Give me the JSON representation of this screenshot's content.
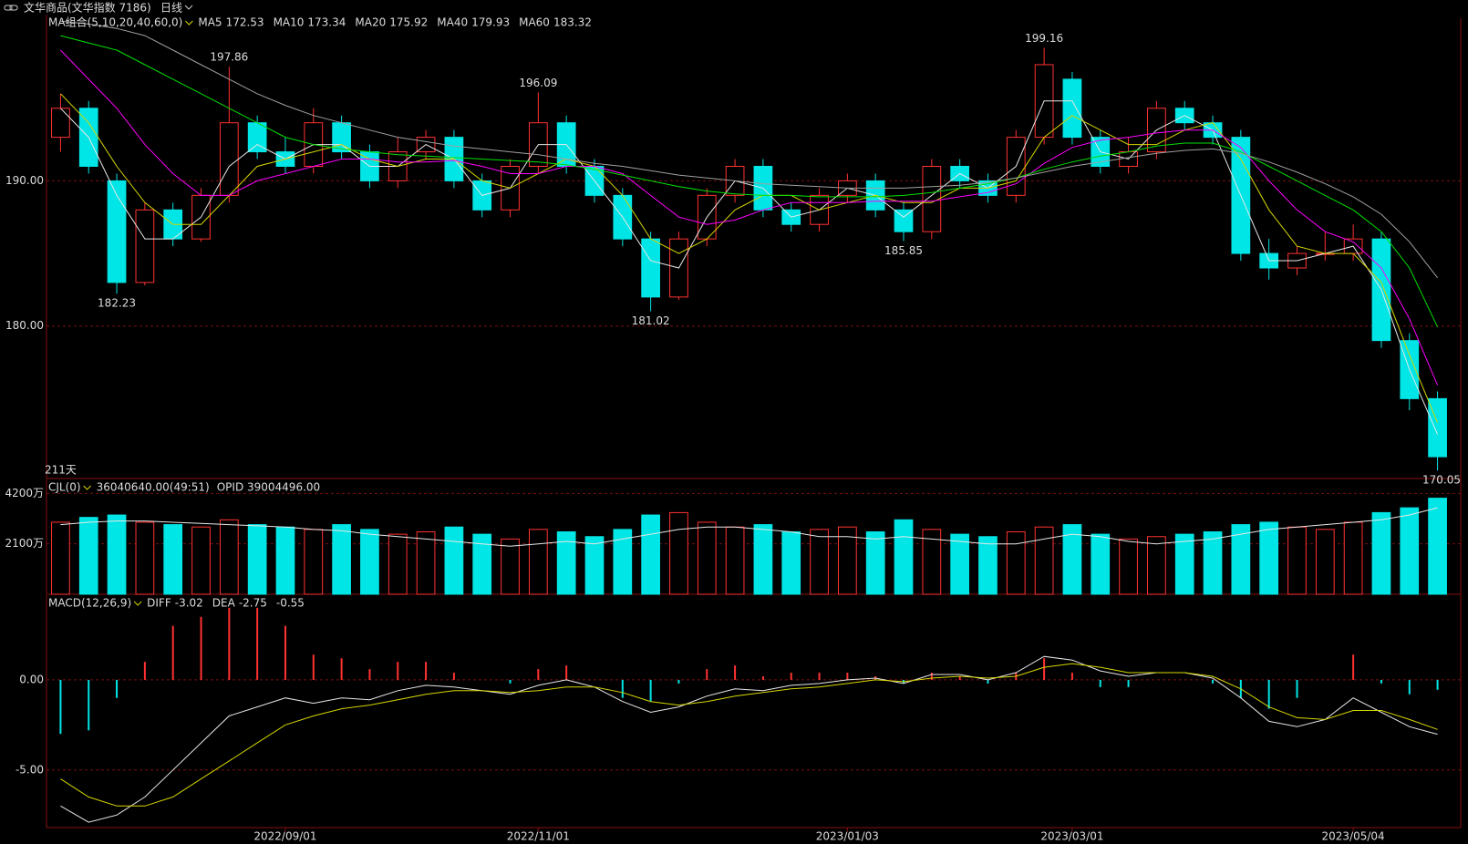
{
  "chart_data": [
    {
      "type": "candlestick",
      "title": "文华商品(文华指数 7186)",
      "period": "日线",
      "ma_label": "MA组合(5,10,20,40,60,0)",
      "count_label": "211天",
      "categories": [
        null,
        null,
        null,
        null,
        null,
        null,
        null,
        null,
        "2022/09/01",
        null,
        null,
        null,
        null,
        null,
        null,
        null,
        null,
        "2022/11/01",
        null,
        null,
        null,
        null,
        null,
        null,
        null,
        null,
        null,
        null,
        "2023/01/03",
        null,
        null,
        null,
        null,
        null,
        null,
        null,
        "2023/03/01",
        null,
        null,
        null,
        null,
        null,
        null,
        null,
        null,
        null,
        "2023/05/04",
        null,
        null,
        null
      ],
      "open": [
        193,
        195,
        190,
        183,
        188,
        186,
        189,
        194,
        192,
        191,
        194,
        192,
        190,
        192,
        193,
        190,
        188,
        191,
        194,
        191,
        189,
        186,
        182,
        186,
        189,
        191,
        188,
        187,
        189,
        190,
        188,
        186.5,
        191,
        190,
        189,
        193,
        197,
        193,
        191,
        192,
        195,
        194,
        193,
        185,
        184,
        185,
        185,
        186,
        179,
        175
      ],
      "high": [
        196,
        195.5,
        190.5,
        188.5,
        188.5,
        189.5,
        197.86,
        194.5,
        193,
        195,
        194.5,
        192.5,
        193,
        193.5,
        193.5,
        190.5,
        191.5,
        196.09,
        194.5,
        191.5,
        189.5,
        186.5,
        186.5,
        189.5,
        191.5,
        191.5,
        188.5,
        189.5,
        190.5,
        190.5,
        188.5,
        191.5,
        191.5,
        190.5,
        193.5,
        199.16,
        197.5,
        193.5,
        193,
        195.5,
        195.5,
        194.5,
        193.5,
        186,
        185.5,
        186.5,
        187,
        186.5,
        179.5,
        175.5
      ],
      "low": [
        192,
        190.5,
        182.23,
        182.8,
        185.5,
        185.8,
        188.5,
        191.5,
        190.5,
        190.5,
        191.5,
        189.5,
        189.5,
        191.5,
        189.5,
        187.5,
        187.5,
        190.5,
        190.5,
        188.5,
        185.5,
        181.02,
        181.8,
        185.5,
        188.5,
        187.5,
        186.5,
        186.5,
        188.5,
        187.5,
        185.85,
        186,
        189.5,
        188.5,
        188.5,
        192.5,
        192.5,
        190.5,
        190.5,
        191.5,
        193.5,
        192.5,
        184.5,
        183.2,
        183.5,
        184.5,
        184.5,
        178.5,
        174.2,
        170.05
      ],
      "close": [
        195,
        191,
        183,
        188,
        186,
        189,
        194,
        192,
        191,
        194,
        192,
        190,
        192,
        193,
        190,
        188,
        191,
        194,
        191,
        189,
        186,
        182,
        186,
        189,
        191,
        188,
        187,
        189,
        190,
        188,
        186.5,
        191,
        190,
        189,
        193,
        198,
        193,
        191,
        192,
        195,
        194,
        193,
        185,
        184,
        185,
        185,
        186,
        179,
        175,
        171
      ],
      "up_color": "#ff3232",
      "down_color": "#00e5e5",
      "ylim": [
        169.5,
        201.2
      ],
      "yticks": [
        {
          "value": 180,
          "label": "180.00"
        },
        {
          "value": 190,
          "label": "190.00"
        }
      ],
      "series": [
        {
          "name": "MA5",
          "color": "#e8e8e8",
          "last": 172.53,
          "values": [
            195,
            193,
            189,
            186,
            186,
            187.5,
            191,
            192.5,
            191.5,
            192.5,
            192.5,
            191,
            191,
            192.5,
            191.5,
            189,
            189.5,
            192.5,
            192.5,
            190,
            187.5,
            184.5,
            184,
            187.5,
            190,
            189.5,
            187.5,
            188,
            189.5,
            189,
            187.5,
            189,
            190.5,
            189.5,
            191,
            195.5,
            195.5,
            192,
            191.5,
            193.5,
            194.5,
            193.5,
            189,
            184.5,
            184.5,
            185,
            185.5,
            182.5,
            177,
            172.53
          ]
        },
        {
          "name": "MA10",
          "color": "#d6d600",
          "last": 173.34,
          "values": [
            196,
            194,
            191,
            188.5,
            187,
            187,
            189,
            191,
            191.5,
            192,
            192.5,
            191.5,
            191,
            191.5,
            191.5,
            190,
            189.5,
            190.5,
            191.5,
            191,
            189,
            186,
            185,
            186,
            188,
            189,
            189,
            188,
            188.5,
            189,
            188.5,
            188.5,
            189.5,
            189.5,
            190,
            193,
            194.5,
            193.5,
            192.5,
            192.5,
            193.5,
            194,
            191.5,
            188,
            185.5,
            185,
            185,
            183,
            178,
            173.34
          ]
        },
        {
          "name": "MA20",
          "color": "#ff00ff",
          "last": 175.92,
          "values": [
            199,
            197,
            195,
            192.5,
            190.5,
            189,
            189,
            190,
            190.5,
            191,
            191.5,
            191.5,
            191.3,
            191.3,
            191.4,
            191,
            190.5,
            190.5,
            191,
            191,
            190.5,
            189,
            187.5,
            187,
            187.3,
            188,
            188.5,
            188.5,
            188.5,
            188.6,
            188.6,
            188.6,
            188.9,
            189.2,
            189.8,
            191.2,
            192.3,
            192.8,
            193,
            193.3,
            193.5,
            193.5,
            192.3,
            190,
            188,
            186.5,
            185.8,
            184,
            180.5,
            175.92
          ]
        },
        {
          "name": "MA40",
          "color": "#00e000",
          "last": 179.93,
          "values": [
            200,
            199.5,
            199,
            198,
            197,
            196,
            195,
            194,
            193,
            192.5,
            192.2,
            192,
            191.8,
            191.7,
            191.6,
            191.5,
            191.4,
            191.3,
            191.1,
            190.8,
            190.4,
            190,
            189.6,
            189.3,
            189.1,
            189,
            189,
            188.9,
            188.9,
            188.9,
            189,
            189.2,
            189.5,
            189.8,
            190.2,
            190.8,
            191.3,
            191.7,
            192,
            192.4,
            192.6,
            192.6,
            192,
            191,
            190,
            189,
            188,
            186.5,
            184,
            179.93
          ]
        },
        {
          "name": "MA60",
          "color": "#a0a0a0",
          "last": 183.32,
          "values": [
            201,
            200.8,
            200.5,
            200,
            199,
            198,
            197,
            196,
            195.2,
            194.5,
            194,
            193.5,
            193,
            192.7,
            192.4,
            192.2,
            192,
            191.8,
            191.5,
            191.2,
            191,
            190.7,
            190.4,
            190.2,
            190,
            189.8,
            189.7,
            189.6,
            189.5,
            189.5,
            189.5,
            189.6,
            189.7,
            189.9,
            190.2,
            190.6,
            191,
            191.3,
            191.6,
            191.9,
            192.1,
            192.2,
            191.9,
            191.3,
            190.6,
            189.8,
            188.9,
            187.7,
            185.8,
            183.32
          ]
        }
      ]
    },
    {
      "type": "volume",
      "title": "CJL(0)",
      "info": "36040640.00(49:51)",
      "oi_label": "OPID 39004496.00",
      "ylim": [
        0,
        4630
      ],
      "yticks": [
        {
          "value": 2100,
          "label": "2100万"
        },
        {
          "value": 4200,
          "label": "4200万"
        }
      ],
      "values": [
        3000,
        3200,
        3300,
        3000,
        2900,
        2800,
        3100,
        2900,
        2800,
        2700,
        2900,
        2700,
        2500,
        2600,
        2800,
        2500,
        2300,
        2700,
        2600,
        2400,
        2700,
        3300,
        3400,
        3000,
        2800,
        2900,
        2600,
        2700,
        2800,
        2600,
        3100,
        2700,
        2500,
        2400,
        2600,
        2800,
        2900,
        2500,
        2300,
        2400,
        2500,
        2600,
        2900,
        3000,
        2800,
        2700,
        3000,
        3400,
        3600,
        4000
      ],
      "ma": {
        "color": "#e8e8e8",
        "values": [
          2900,
          3000,
          3050,
          3050,
          3000,
          2950,
          2900,
          2850,
          2800,
          2700,
          2650,
          2500,
          2400,
          2300,
          2200,
          2100,
          2000,
          2100,
          2200,
          2100,
          2300,
          2500,
          2700,
          2800,
          2800,
          2700,
          2600,
          2400,
          2400,
          2300,
          2400,
          2300,
          2200,
          2100,
          2100,
          2300,
          2500,
          2400,
          2200,
          2100,
          2200,
          2300,
          2500,
          2700,
          2800,
          2900,
          3000,
          3100,
          3300,
          3600
        ]
      }
    },
    {
      "type": "macd",
      "title": "MACD(12,26,9)",
      "hist_last": -0.55,
      "ylim": [
        -8.2,
        4.5
      ],
      "yticks": [
        {
          "value": 0,
          "label": "0.00"
        },
        {
          "value": -5,
          "label": "-5.00"
        }
      ],
      "series": [
        {
          "name": "DIFF",
          "color": "#e8e8e8",
          "last": -3.02,
          "values": [
            -7,
            -7.9,
            -7.5,
            -6.5,
            -5,
            -3.5,
            -2,
            -1.5,
            -1,
            -1.3,
            -1,
            -1.1,
            -0.6,
            -0.3,
            -0.4,
            -0.6,
            -0.8,
            -0.3,
            0,
            -0.4,
            -1.2,
            -1.8,
            -1.5,
            -0.9,
            -0.5,
            -0.6,
            -0.3,
            -0.2,
            0,
            0.1,
            -0.2,
            0.3,
            0.3,
            0,
            0.4,
            1.3,
            1.1,
            0.5,
            0.2,
            0.4,
            0.4,
            0.1,
            -1,
            -2.3,
            -2.6,
            -2.2,
            -1,
            -1.8,
            -2.6,
            -3.02
          ]
        },
        {
          "name": "DEA",
          "color": "#d6d600",
          "last": -2.75,
          "values": [
            -5.5,
            -6.5,
            -7,
            -7,
            -6.5,
            -5.5,
            -4.5,
            -3.5,
            -2.5,
            -2,
            -1.6,
            -1.4,
            -1.1,
            -0.8,
            -0.6,
            -0.6,
            -0.7,
            -0.6,
            -0.4,
            -0.4,
            -0.7,
            -1.2,
            -1.4,
            -1.2,
            -0.9,
            -0.7,
            -0.5,
            -0.4,
            -0.2,
            0,
            -0.1,
            0.1,
            0.2,
            0.1,
            0.2,
            0.7,
            0.9,
            0.7,
            0.4,
            0.4,
            0.4,
            0.2,
            -0.5,
            -1.5,
            -2.1,
            -2.2,
            -1.7,
            -1.7,
            -2.2,
            -2.75
          ]
        }
      ],
      "hist": [
        -3,
        -2.8,
        -1,
        1,
        3,
        3.5,
        4,
        4,
        3,
        1.4,
        1.2,
        0.6,
        1,
        1,
        0.4,
        0,
        -0.2,
        0.6,
        0.8,
        0,
        -1,
        -1.2,
        -0.2,
        0.6,
        0.8,
        0.2,
        0.4,
        0.4,
        0.4,
        0.2,
        -0.2,
        0.4,
        0.2,
        -0.2,
        0.4,
        1.2,
        0.4,
        -0.4,
        -0.4,
        0,
        0,
        -0.2,
        -1,
        -1.6,
        -1,
        0,
        1.4,
        -0.2,
        -0.8,
        -0.55
      ]
    }
  ]
}
